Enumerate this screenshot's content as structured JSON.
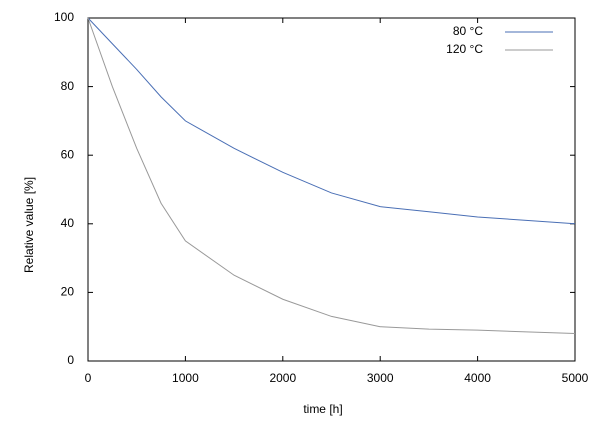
{
  "chart_data": {
    "type": "line",
    "x_label": "time [h]",
    "y_label": "Relative value [%]",
    "x": [
      0,
      250,
      500,
      750,
      1000,
      1500,
      2000,
      2500,
      3000,
      3500,
      4000,
      4500,
      5000
    ],
    "series": [
      {
        "name": "80 °C",
        "color": "#4a6fb5",
        "values": [
          100,
          92.5,
          85,
          77,
          70,
          62,
          55,
          49,
          45,
          43.5,
          42,
          41,
          40
        ]
      },
      {
        "name": "120 °C",
        "color": "#999999",
        "values": [
          100,
          80,
          62,
          46,
          35,
          25,
          18,
          13,
          10,
          9.3,
          9,
          8.5,
          8
        ]
      }
    ],
    "xlim": [
      0,
      5000
    ],
    "xticks": [
      0,
      1000,
      2000,
      3000,
      4000,
      5000
    ],
    "ylim": [
      0,
      100
    ],
    "yticks": [
      0,
      20,
      40,
      60,
      80,
      100
    ],
    "legend": "upper right"
  }
}
